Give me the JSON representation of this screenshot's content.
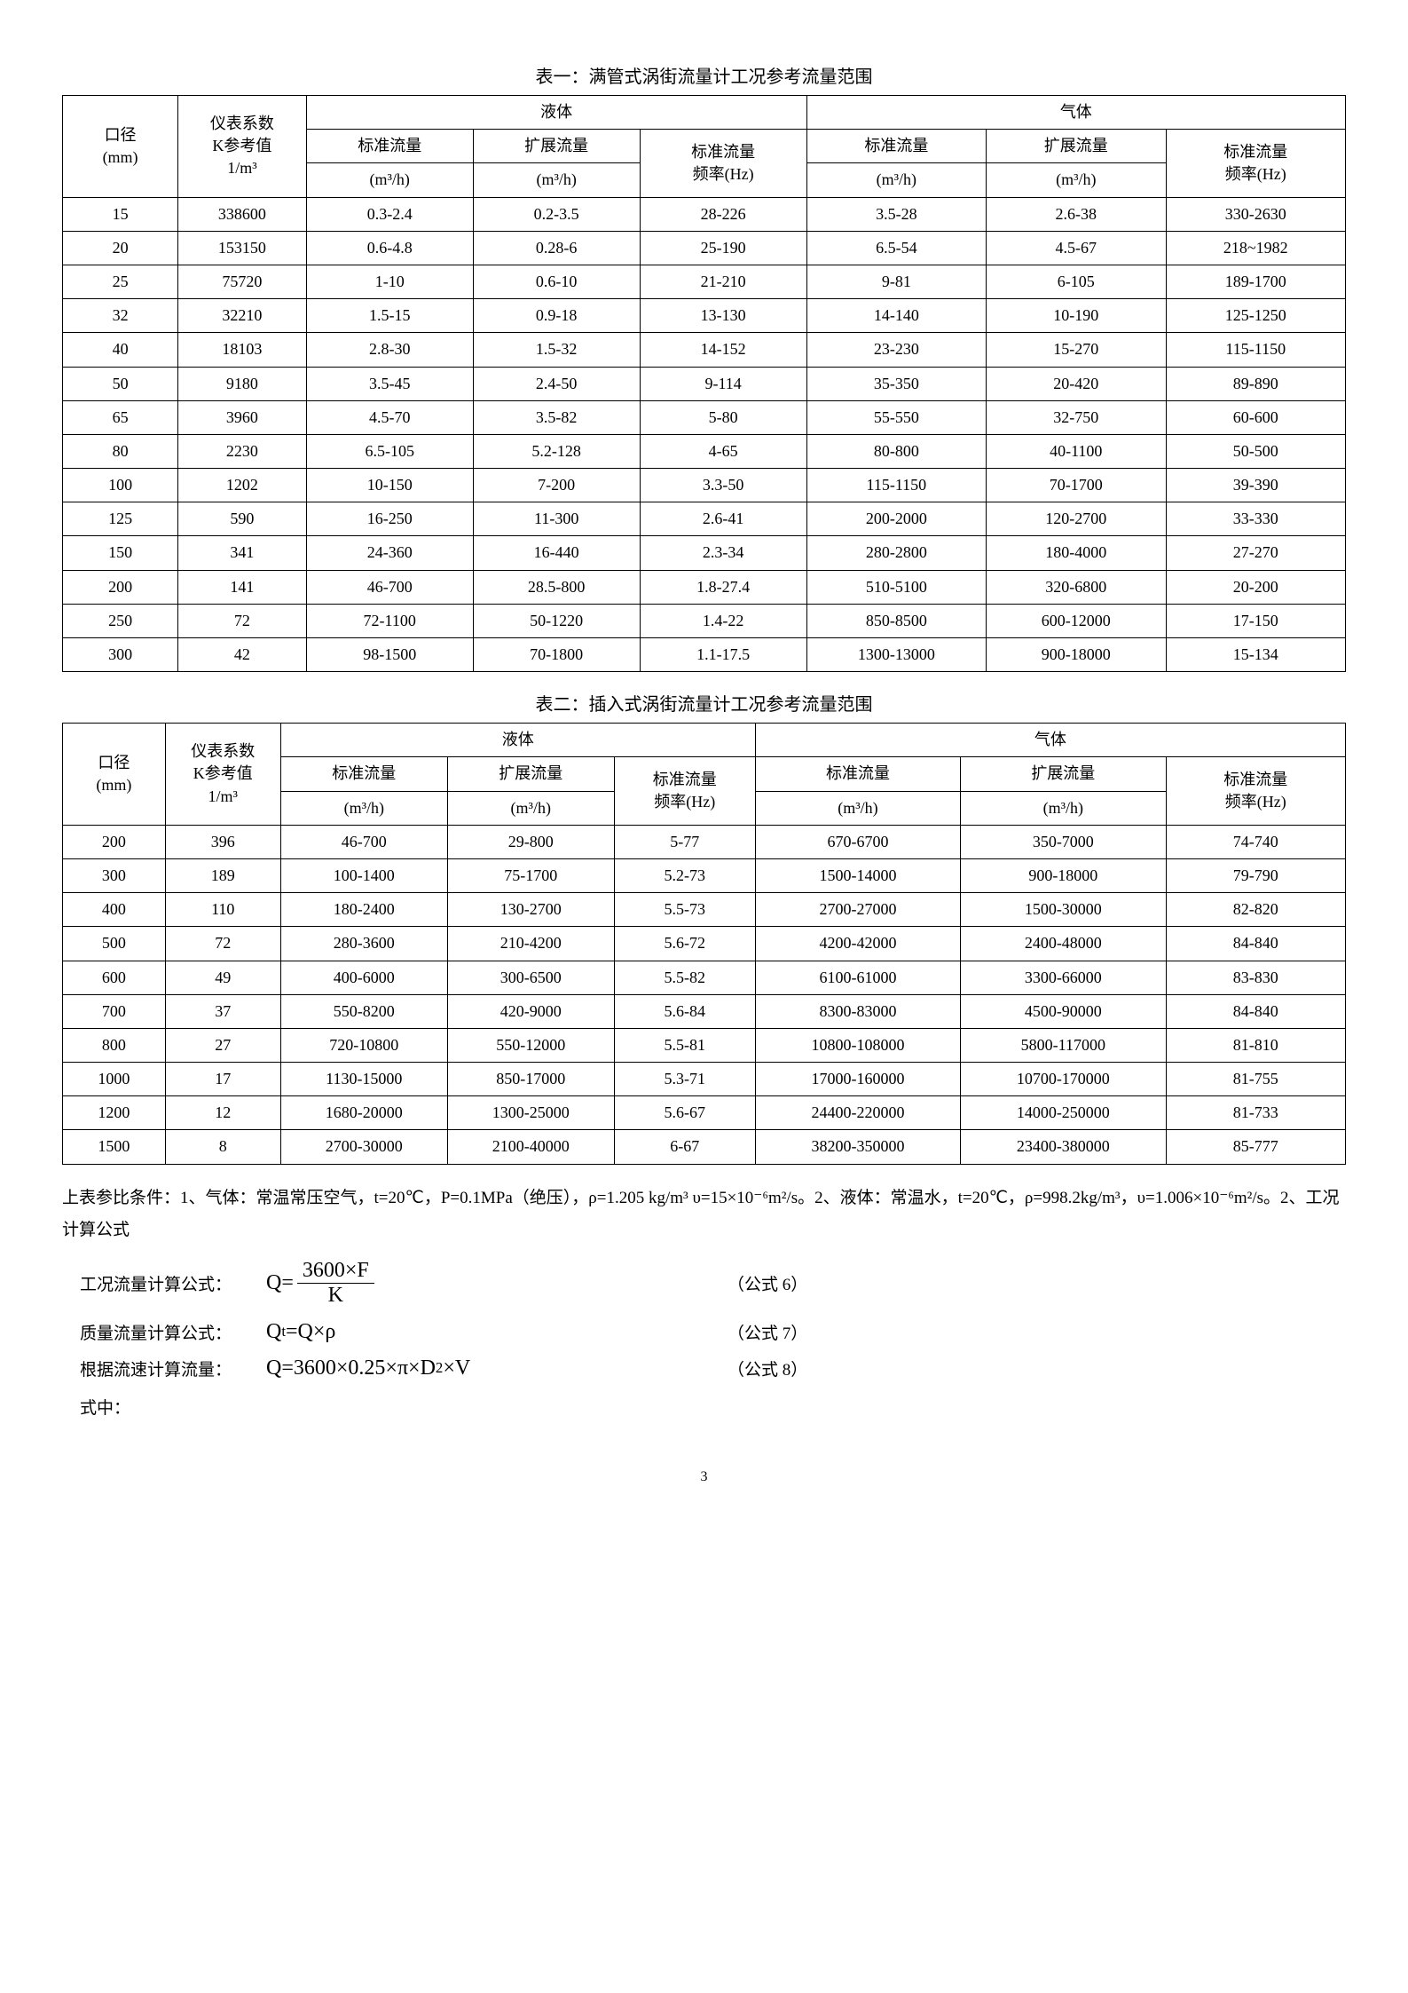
{
  "table1": {
    "title": "表一：满管式涡街流量计工况参考流量范围",
    "col_diameter": "口径\n(mm)",
    "col_kvalue": "仪表系数\nK参考值\n1/m³",
    "group_liquid": "液体",
    "group_gas": "气体",
    "col_std_flow": "标准流量",
    "col_ext_flow": "扩展流量",
    "col_std_freq": "标准流量\n频率",
    "unit_m3h": "(m³/h)",
    "unit_hz": "(Hz)",
    "rows": [
      [
        "15",
        "338600",
        "0.3-2.4",
        "0.2-3.5",
        "28-226",
        "3.5-28",
        "2.6-38",
        "330-2630"
      ],
      [
        "20",
        "153150",
        "0.6-4.8",
        "0.28-6",
        "25-190",
        "6.5-54",
        "4.5-67",
        "218~1982"
      ],
      [
        "25",
        "75720",
        "1-10",
        "0.6-10",
        "21-210",
        "9-81",
        "6-105",
        "189-1700"
      ],
      [
        "32",
        "32210",
        "1.5-15",
        "0.9-18",
        "13-130",
        "14-140",
        "10-190",
        "125-1250"
      ],
      [
        "40",
        "18103",
        "2.8-30",
        "1.5-32",
        "14-152",
        "23-230",
        "15-270",
        "115-1150"
      ],
      [
        "50",
        "9180",
        "3.5-45",
        "2.4-50",
        "9-114",
        "35-350",
        "20-420",
        "89-890"
      ],
      [
        "65",
        "3960",
        "4.5-70",
        "3.5-82",
        "5-80",
        "55-550",
        "32-750",
        "60-600"
      ],
      [
        "80",
        "2230",
        "6.5-105",
        "5.2-128",
        "4-65",
        "80-800",
        "40-1100",
        "50-500"
      ],
      [
        "100",
        "1202",
        "10-150",
        "7-200",
        "3.3-50",
        "115-1150",
        "70-1700",
        "39-390"
      ],
      [
        "125",
        "590",
        "16-250",
        "11-300",
        "2.6-41",
        "200-2000",
        "120-2700",
        "33-330"
      ],
      [
        "150",
        "341",
        "24-360",
        "16-440",
        "2.3-34",
        "280-2800",
        "180-4000",
        "27-270"
      ],
      [
        "200",
        "141",
        "46-700",
        "28.5-800",
        "1.8-27.4",
        "510-5100",
        "320-6800",
        "20-200"
      ],
      [
        "250",
        "72",
        "72-1100",
        "50-1220",
        "1.4-22",
        "850-8500",
        "600-12000",
        "17-150"
      ],
      [
        "300",
        "42",
        "98-1500",
        "70-1800",
        "1.1-17.5",
        "1300-13000",
        "900-18000",
        "15-134"
      ]
    ]
  },
  "table2": {
    "title": "表二：插入式涡街流量计工况参考流量范围",
    "rows": [
      [
        "200",
        "396",
        "46-700",
        "29-800",
        "5-77",
        "670-6700",
        "350-7000",
        "74-740"
      ],
      [
        "300",
        "189",
        "100-1400",
        "75-1700",
        "5.2-73",
        "1500-14000",
        "900-18000",
        "79-790"
      ],
      [
        "400",
        "110",
        "180-2400",
        "130-2700",
        "5.5-73",
        "2700-27000",
        "1500-30000",
        "82-820"
      ],
      [
        "500",
        "72",
        "280-3600",
        "210-4200",
        "5.6-72",
        "4200-42000",
        "2400-48000",
        "84-840"
      ],
      [
        "600",
        "49",
        "400-6000",
        "300-6500",
        "5.5-82",
        "6100-61000",
        "3300-66000",
        "83-830"
      ],
      [
        "700",
        "37",
        "550-8200",
        "420-9000",
        "5.6-84",
        "8300-83000",
        "4500-90000",
        "84-840"
      ],
      [
        "800",
        "27",
        "720-10800",
        "550-12000",
        "5.5-81",
        "10800-108000",
        "5800-117000",
        "81-810"
      ],
      [
        "1000",
        "17",
        "1130-15000",
        "850-17000",
        "5.3-71",
        "17000-160000",
        "10700-170000",
        "81-755"
      ],
      [
        "1200",
        "12",
        "1680-20000",
        "1300-25000",
        "5.6-67",
        "24400-220000",
        "14000-250000",
        "81-733"
      ],
      [
        "1500",
        "8",
        "2700-30000",
        "2100-40000",
        "6-67",
        "38200-350000",
        "23400-380000",
        "85-777"
      ]
    ]
  },
  "notes": {
    "paragraph": "上表参比条件：1、气体：常温常压空气，t=20℃，P=0.1MPa（绝压），ρ=1.205 kg/m³ υ=15×10⁻⁶m²/s。2、液体：常温水，t=20℃，ρ=998.2kg/m³，υ=1.006×10⁻⁶m²/s。2、工况计算公式"
  },
  "formulas": {
    "f1_label": "工况流量计算公式：",
    "f1_ref": "（公式 6）",
    "f2_label": "质量流量计算公式：",
    "f2_body": "Qt=Q×ρ",
    "f2_ref": "（公式 7）",
    "f3_label": "根据流速计算流量：",
    "f3_body": "Q=3600×0.25×π×D²×V",
    "f3_ref": "（公式 8）"
  },
  "tail": "式中：",
  "pagenum": "3"
}
